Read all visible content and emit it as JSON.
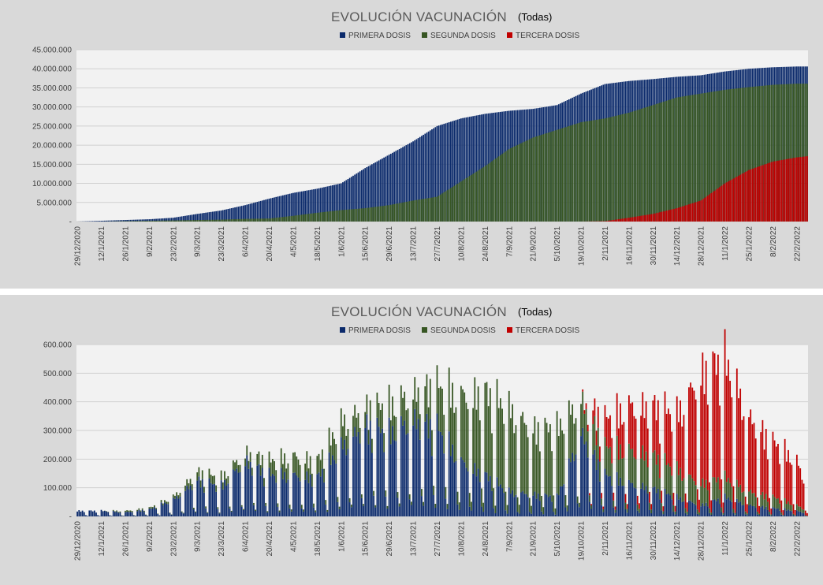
{
  "colors": {
    "primera": "#0b2a6b",
    "segunda": "#375623",
    "tercera": "#c00000",
    "plot_bg": "#f2f2f2",
    "panel_bg": "#d9d9d9",
    "grid": "#d0d0d0"
  },
  "legend": {
    "primera": "PRIMERA DOSIS",
    "segunda": "SEGUNDA DOSIS",
    "tercera": "TERCERA DOSIS"
  },
  "chart_data": [
    {
      "type": "bar",
      "stacking": "overlapped",
      "title": "EVOLUCIÓN VACUNACIÓN",
      "subtitle": "(Todas)",
      "x_start": "29/12/2020",
      "x_end": "28/2/2022",
      "x_tick_labels": [
        "29/12/2020",
        "12/1/2021",
        "26/1/2021",
        "9/2/2021",
        "23/2/2021",
        "9/3/2021",
        "23/3/2021",
        "6/4/2021",
        "20/4/2021",
        "4/5/2021",
        "18/5/2021",
        "1/6/2021",
        "15/6/2021",
        "29/6/2021",
        "13/7/2021",
        "27/7/2021",
        "10/8/2021",
        "24/8/2021",
        "7/9/2021",
        "21/9/2021",
        "5/10/2021",
        "19/10/2021",
        "2/11/2021",
        "16/11/2021",
        "30/11/2021",
        "14/12/2021",
        "28/12/2021",
        "11/1/2022",
        "25/1/2022",
        "8/2/2022",
        "22/2/2022"
      ],
      "y_tick_labels": [
        "-",
        "5.000.000",
        "10.000.000",
        "15.000.000",
        "20.000.000",
        "25.000.000",
        "30.000.000",
        "35.000.000",
        "40.000.000",
        "45.000.000"
      ],
      "ylim": [
        0,
        45000000
      ],
      "grid": true,
      "legend_position": "top",
      "series": [
        {
          "name": "PRIMERA DOSIS",
          "x": [
            "29/12/2020",
            "12/1/2021",
            "26/1/2021",
            "9/2/2021",
            "23/2/2021",
            "9/3/2021",
            "23/3/2021",
            "6/4/2021",
            "20/4/2021",
            "4/5/2021",
            "18/5/2021",
            "1/6/2021",
            "15/6/2021",
            "29/6/2021",
            "13/7/2021",
            "27/7/2021",
            "10/8/2021",
            "24/8/2021",
            "7/9/2021",
            "21/9/2021",
            "5/10/2021",
            "19/10/2021",
            "2/11/2021",
            "16/11/2021",
            "30/11/2021",
            "14/12/2021",
            "28/12/2021",
            "11/1/2022",
            "25/1/2022",
            "8/2/2022",
            "22/2/2022",
            "28/2/2022"
          ],
          "values": [
            0,
            200000,
            400000,
            600000,
            1000000,
            2000000,
            2900000,
            4300000,
            6000000,
            7500000,
            8600000,
            10000000,
            14000000,
            17500000,
            21000000,
            25000000,
            27000000,
            28200000,
            29000000,
            29500000,
            30500000,
            33500000,
            36000000,
            36800000,
            37300000,
            37900000,
            38300000,
            39300000,
            40000000,
            40400000,
            40600000,
            40600000
          ]
        },
        {
          "name": "SEGUNDA DOSIS",
          "x": [
            "29/12/2020",
            "12/1/2021",
            "26/1/2021",
            "9/2/2021",
            "23/2/2021",
            "9/3/2021",
            "23/3/2021",
            "6/4/2021",
            "20/4/2021",
            "4/5/2021",
            "18/5/2021",
            "1/6/2021",
            "15/6/2021",
            "29/6/2021",
            "13/7/2021",
            "27/7/2021",
            "10/8/2021",
            "24/8/2021",
            "7/9/2021",
            "21/9/2021",
            "5/10/2021",
            "19/10/2021",
            "2/11/2021",
            "16/11/2021",
            "30/11/2021",
            "14/12/2021",
            "28/12/2021",
            "11/1/2022",
            "25/1/2022",
            "8/2/2022",
            "22/2/2022",
            "28/2/2022"
          ],
          "values": [
            0,
            0,
            100000,
            200000,
            300000,
            400000,
            500000,
            700000,
            800000,
            1500000,
            2300000,
            3000000,
            3500000,
            4300000,
            5500000,
            6500000,
            10500000,
            14500000,
            19000000,
            22000000,
            24000000,
            26000000,
            27000000,
            28500000,
            30500000,
            32500000,
            33500000,
            34500000,
            35200000,
            35800000,
            36100000,
            36100000
          ]
        },
        {
          "name": "TERCERA DOSIS",
          "x": [
            "19/10/2021",
            "2/11/2021",
            "16/11/2021",
            "30/11/2021",
            "14/12/2021",
            "28/12/2021",
            "11/1/2022",
            "25/1/2022",
            "8/2/2022",
            "22/2/2022",
            "28/2/2022"
          ],
          "values": [
            0,
            100000,
            1000000,
            2000000,
            3500000,
            5500000,
            10000000,
            13500000,
            15700000,
            16800000,
            17100000
          ]
        }
      ]
    },
    {
      "type": "bar",
      "stacking": "stacked",
      "title": "EVOLUCIÓN VACUNACIÓN",
      "subtitle": "(Todas)",
      "x_start": "29/12/2020",
      "x_end": "28/2/2022",
      "x_tick_labels": [
        "29/12/2020",
        "12/1/2021",
        "26/1/2021",
        "9/2/2021",
        "23/2/2021",
        "9/3/2021",
        "23/3/2021",
        "6/4/2021",
        "20/4/2021",
        "4/5/2021",
        "18/5/2021",
        "1/6/2021",
        "15/6/2021",
        "29/6/2021",
        "13/7/2021",
        "27/7/2021",
        "10/8/2021",
        "24/8/2021",
        "7/9/2021",
        "21/9/2021",
        "5/10/2021",
        "19/10/2021",
        "2/11/2021",
        "16/11/2021",
        "30/11/2021",
        "14/12/2021",
        "28/12/2021",
        "11/1/2022",
        "25/1/2022",
        "8/2/2022",
        "22/2/2022"
      ],
      "y_tick_labels": [
        "-",
        "100.000",
        "200.000",
        "300.000",
        "400.000",
        "500.000",
        "600.000"
      ],
      "ylim": [
        0,
        600000
      ],
      "grid": true,
      "legend_position": "top",
      "weekday_factors": [
        1.0,
        0.95,
        0.9,
        0.9,
        0.75,
        0.2,
        0.1
      ],
      "series": [
        {
          "name": "PRIMERA DOSIS",
          "x": [
            "29/12/2020",
            "12/1/2021",
            "26/1/2021",
            "9/2/2021",
            "23/2/2021",
            "9/3/2021",
            "23/3/2021",
            "6/4/2021",
            "20/4/2021",
            "4/5/2021",
            "18/5/2021",
            "1/6/2021",
            "15/6/2021",
            "29/6/2021",
            "13/7/2021",
            "27/7/2021",
            "10/8/2021",
            "24/8/2021",
            "7/9/2021",
            "21/9/2021",
            "5/10/2021",
            "19/10/2021",
            "2/11/2021",
            "16/11/2021",
            "30/11/2021",
            "14/12/2021",
            "28/12/2021",
            "11/1/2022",
            "25/1/2022",
            "8/2/2022",
            "22/2/2022",
            "28/2/2022"
          ],
          "values": [
            20000,
            20000,
            15000,
            25000,
            60000,
            130000,
            110000,
            200000,
            150000,
            150000,
            140000,
            250000,
            330000,
            300000,
            350000,
            320000,
            200000,
            150000,
            90000,
            80000,
            70000,
            300000,
            150000,
            120000,
            100000,
            70000,
            40000,
            70000,
            40000,
            30000,
            20000,
            10000
          ]
        },
        {
          "name": "SEGUNDA DOSIS",
          "x": [
            "29/12/2020",
            "12/1/2021",
            "26/1/2021",
            "9/2/2021",
            "23/2/2021",
            "9/3/2021",
            "23/3/2021",
            "6/4/2021",
            "20/4/2021",
            "4/5/2021",
            "18/5/2021",
            "1/6/2021",
            "15/6/2021",
            "29/6/2021",
            "13/7/2021",
            "27/7/2021",
            "10/8/2021",
            "24/8/2021",
            "7/9/2021",
            "21/9/2021",
            "5/10/2021",
            "19/10/2021",
            "2/11/2021",
            "16/11/2021",
            "30/11/2021",
            "14/12/2021",
            "28/12/2021",
            "11/1/2022",
            "25/1/2022",
            "8/2/2022",
            "22/2/2022",
            "28/2/2022"
          ],
          "values": [
            0,
            0,
            5000,
            5000,
            10000,
            30000,
            30000,
            30000,
            50000,
            70000,
            60000,
            90000,
            60000,
            100000,
            100000,
            150000,
            240000,
            300000,
            300000,
            240000,
            250000,
            120000,
            100000,
            120000,
            120000,
            100000,
            80000,
            70000,
            50000,
            40000,
            20000,
            10000
          ]
        },
        {
          "name": "TERCERA DOSIS",
          "x": [
            "19/10/2021",
            "2/11/2021",
            "16/11/2021",
            "30/11/2021",
            "14/12/2021",
            "28/12/2021",
            "11/1/2022",
            "25/1/2022",
            "8/2/2022",
            "22/2/2022",
            "28/2/2022"
          ],
          "values": [
            0,
            100000,
            160000,
            180000,
            200000,
            400000,
            430000,
            270000,
            200000,
            160000,
            80000
          ]
        }
      ]
    }
  ]
}
